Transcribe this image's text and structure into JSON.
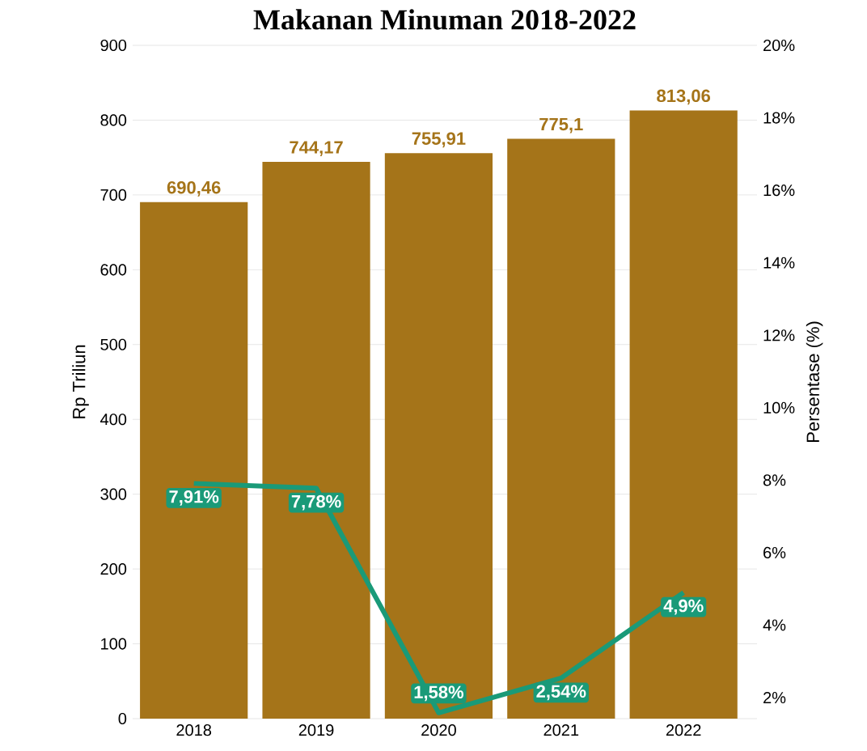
{
  "chart_data": {
    "type": "bar",
    "title": "Makanan Minuman 2018-2022",
    "ylabel": "Rp Triliun",
    "y2label": "Persentase (%)",
    "categories": [
      "2018",
      "2019",
      "2020",
      "2021",
      "2022"
    ],
    "series": [
      {
        "color": "#a57419",
        "values": [
          690.46,
          744.17,
          755.91,
          775.1,
          813.06
        ],
        "value_labels": [
          "690,46",
          "744,17",
          "755,91",
          "775,1",
          "813,06"
        ]
      },
      {
        "type": "line",
        "axis": "y2",
        "color": "#1a9a78",
        "values": [
          7.91,
          7.78,
          1.58,
          2.54,
          4.9
        ],
        "value_labels": [
          "7,91%",
          "7,78%",
          "1,58%",
          "2,54%",
          "4,9%"
        ]
      }
    ],
    "ylim": [
      0,
      900
    ],
    "yticks": [
      0,
      100,
      200,
      300,
      400,
      500,
      600,
      700,
      800,
      900
    ],
    "y2lim": [
      1.42,
      20
    ],
    "y2ticks": [
      {
        "value": 2,
        "label": "2%"
      },
      {
        "value": 4,
        "label": "4%"
      },
      {
        "value": 6,
        "label": "6%"
      },
      {
        "value": 8,
        "label": "8%"
      },
      {
        "value": 10,
        "label": "10%"
      },
      {
        "value": 12,
        "label": "12%"
      },
      {
        "value": 14,
        "label": "14%"
      },
      {
        "value": 16,
        "label": "16%"
      },
      {
        "value": 18,
        "label": "18%"
      },
      {
        "value": 20,
        "label": "20%"
      }
    ],
    "grid": "y",
    "line_style": "solid"
  }
}
